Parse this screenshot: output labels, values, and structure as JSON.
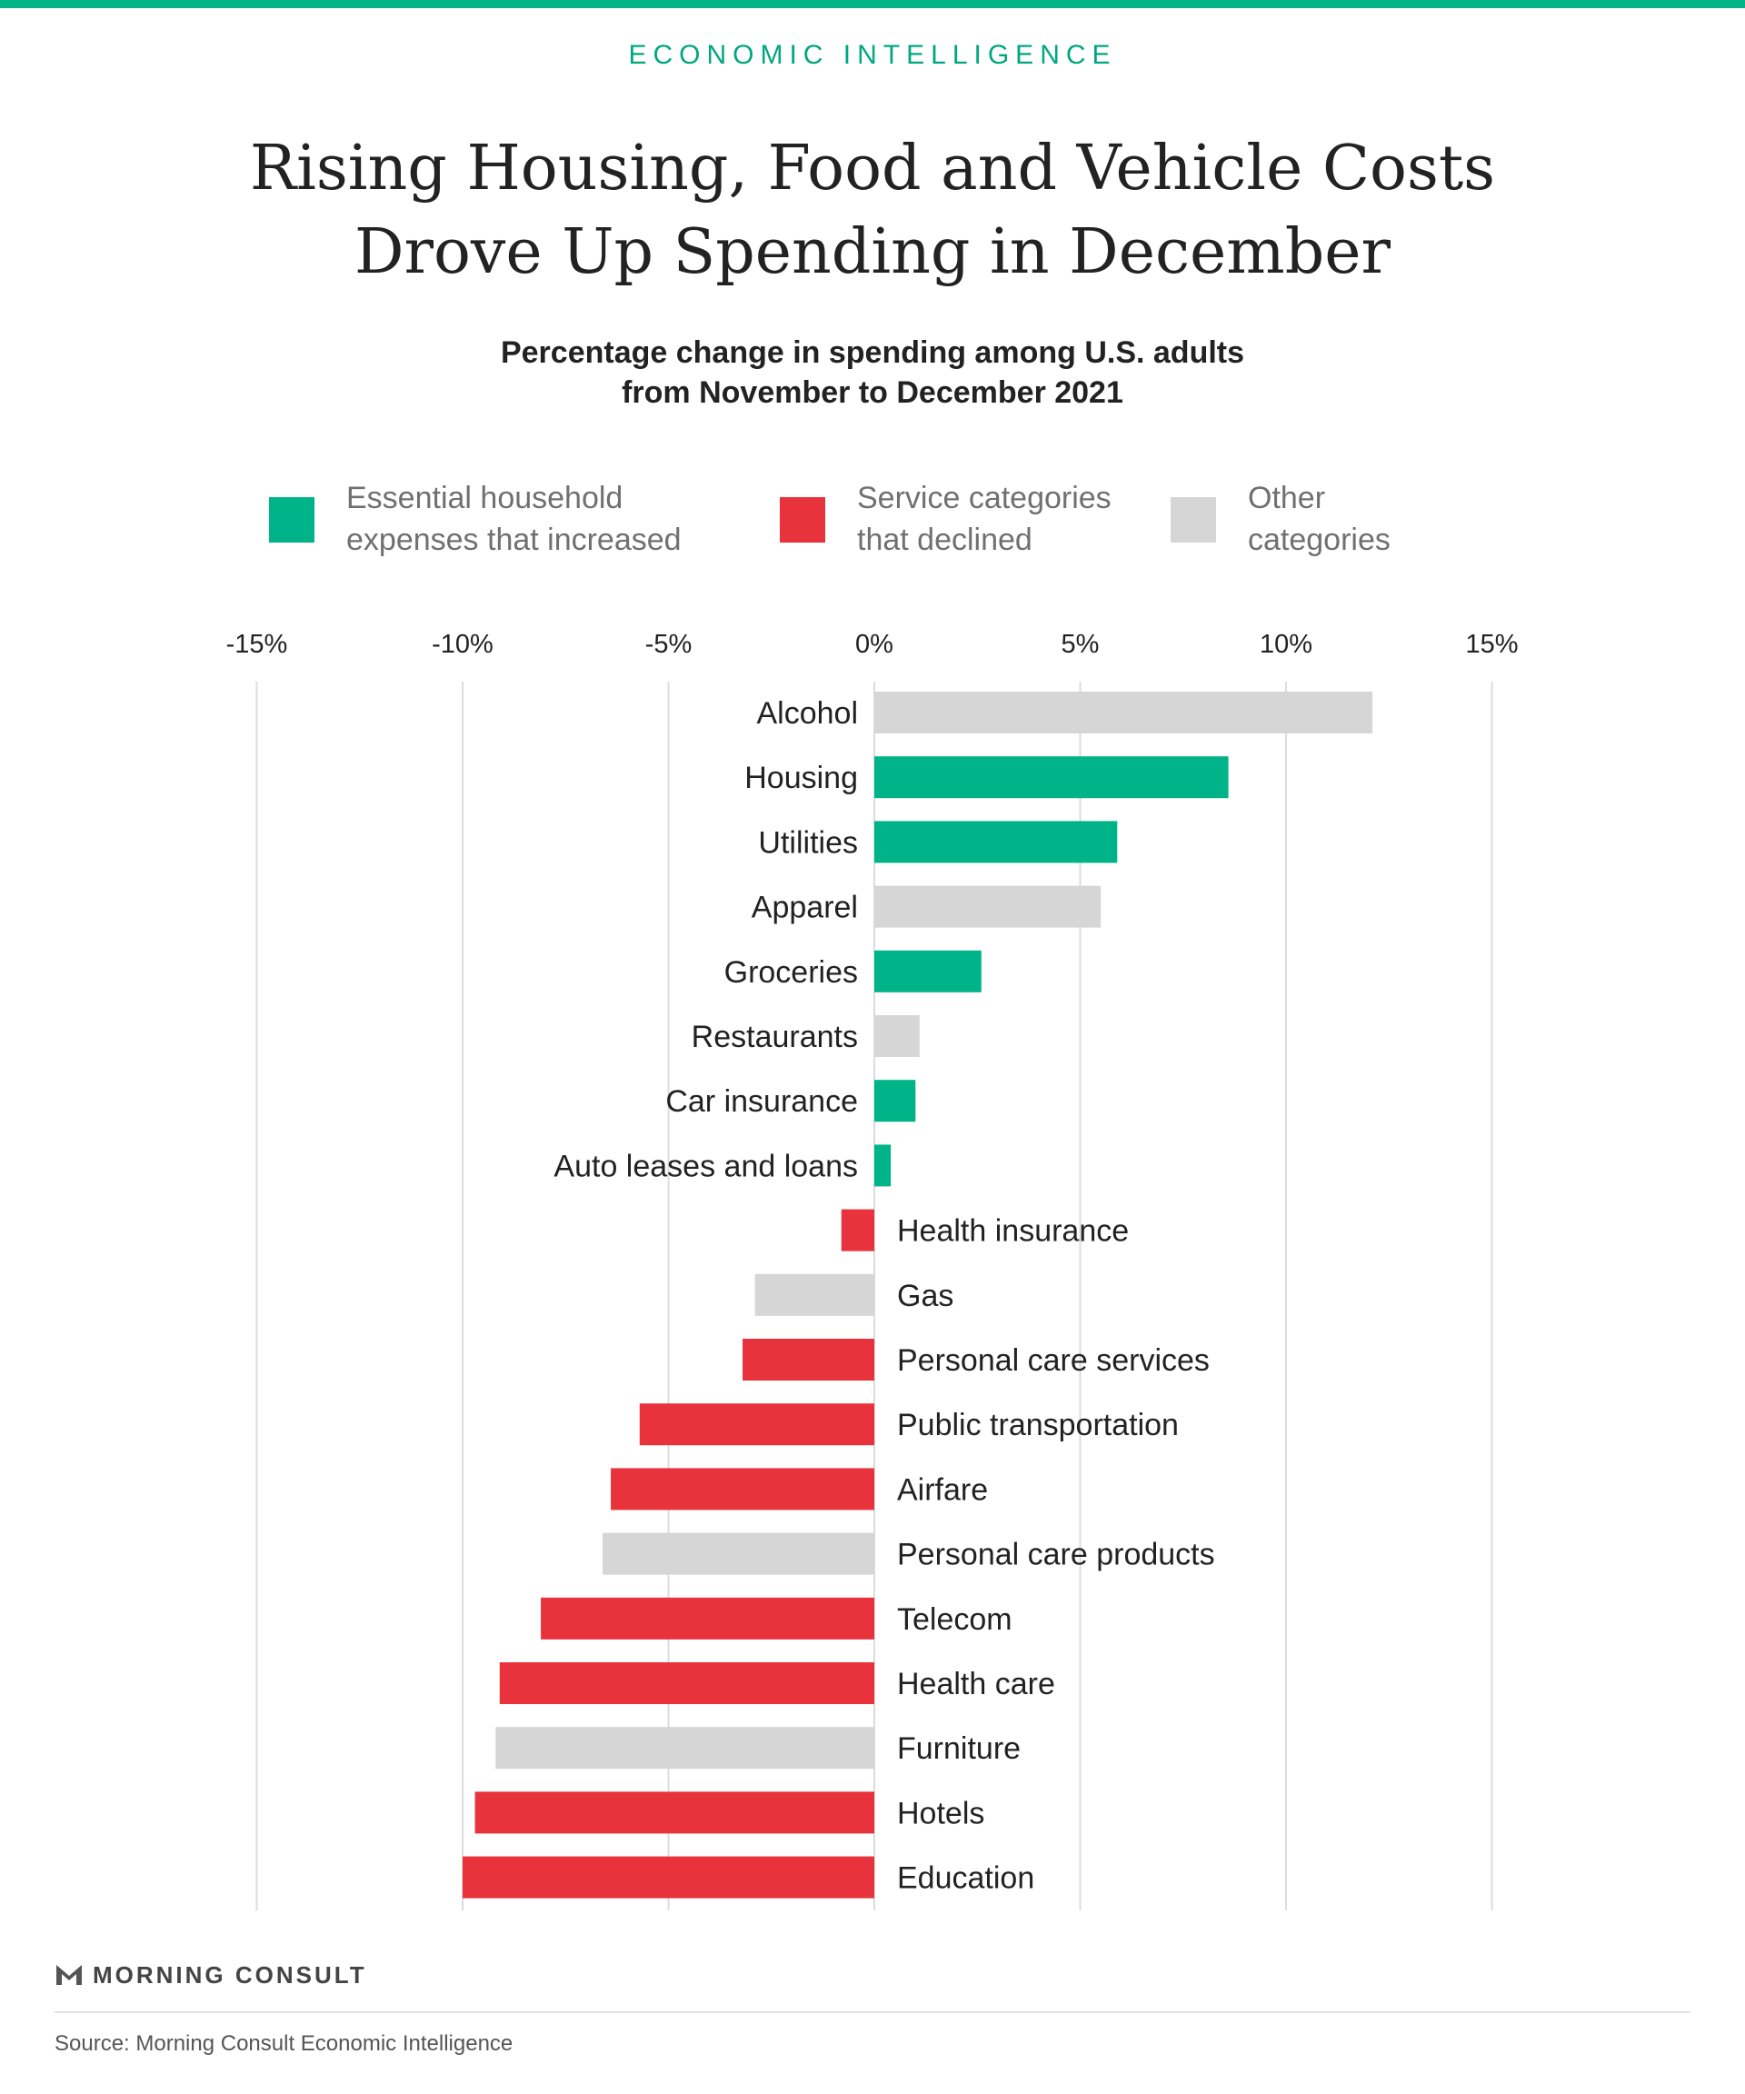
{
  "header": {
    "kicker": "ECONOMIC INTELLIGENCE",
    "title_line1": "Rising Housing, Food and Vehicle Costs",
    "title_line2": "Drove Up Spending in December",
    "subtitle_line1": "Percentage change in spending among U.S. adults",
    "subtitle_line2": "from November to December 2021"
  },
  "legend": [
    {
      "key": "essential",
      "line1": "Essential household",
      "line2": "expenses that increased",
      "color": "#00b388"
    },
    {
      "key": "service",
      "line1": "Service categories",
      "line2": "that declined",
      "color": "#e8323c"
    },
    {
      "key": "other",
      "line1": "Other",
      "line2": "categories",
      "color": "#d6d6d6"
    }
  ],
  "chart_data": {
    "type": "bar",
    "orientation": "horizontal",
    "title": "Percentage change in spending among U.S. adults from November to December 2021",
    "xlim": [
      -15,
      15
    ],
    "xticks": [
      -15,
      -10,
      -5,
      0,
      5,
      10,
      15
    ],
    "xtick_labels": [
      "-15%",
      "-10%",
      "-5%",
      "0%",
      "5%",
      "10%",
      "15%"
    ],
    "grid": true,
    "legend_position": "top",
    "colors": {
      "essential": "#00b388",
      "service": "#e8323c",
      "other": "#d6d6d6"
    },
    "bars": [
      {
        "category": "Alcohol",
        "value": 12.1,
        "group": "other"
      },
      {
        "category": "Housing",
        "value": 8.6,
        "group": "essential"
      },
      {
        "category": "Utilities",
        "value": 5.9,
        "group": "essential"
      },
      {
        "category": "Apparel",
        "value": 5.5,
        "group": "other"
      },
      {
        "category": "Groceries",
        "value": 2.6,
        "group": "essential"
      },
      {
        "category": "Restaurants",
        "value": 1.1,
        "group": "other"
      },
      {
        "category": "Car insurance",
        "value": 1.0,
        "group": "essential"
      },
      {
        "category": "Auto leases and loans",
        "value": 0.4,
        "group": "essential"
      },
      {
        "category": "Health insurance",
        "value": -0.8,
        "group": "service"
      },
      {
        "category": "Gas",
        "value": -2.9,
        "group": "other"
      },
      {
        "category": "Personal care services",
        "value": -3.2,
        "group": "service"
      },
      {
        "category": "Public transportation",
        "value": -5.7,
        "group": "service"
      },
      {
        "category": "Airfare",
        "value": -6.4,
        "group": "service"
      },
      {
        "category": "Personal care products",
        "value": -6.6,
        "group": "other"
      },
      {
        "category": "Telecom",
        "value": -8.1,
        "group": "service"
      },
      {
        "category": "Health care",
        "value": -9.1,
        "group": "service"
      },
      {
        "category": "Furniture",
        "value": -9.2,
        "group": "other"
      },
      {
        "category": "Hotels",
        "value": -9.7,
        "group": "service"
      },
      {
        "category": "Education",
        "value": -10.0,
        "group": "service"
      }
    ]
  },
  "footer": {
    "brand": "MORNING CONSULT",
    "source": "Source: Morning Consult Economic Intelligence"
  }
}
